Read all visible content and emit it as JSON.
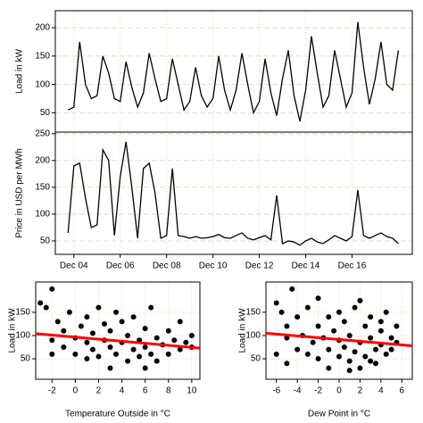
{
  "chart_data": [
    {
      "type": "line",
      "ylabel": "Load in kW",
      "color": "#000000",
      "grid": true,
      "xlim": [
        3.2,
        18.6
      ],
      "ylim": [
        16,
        230
      ],
      "yticks": [
        50,
        100,
        150,
        200
      ],
      "x": [
        3.75,
        4,
        4.25,
        4.5,
        4.75,
        5,
        5.25,
        5.5,
        5.75,
        6,
        6.25,
        6.5,
        6.75,
        7,
        7.25,
        7.5,
        7.75,
        8,
        8.25,
        8.5,
        8.75,
        9,
        9.25,
        9.5,
        9.75,
        10,
        10.25,
        10.5,
        10.75,
        11,
        11.25,
        11.5,
        11.75,
        12,
        12.25,
        12.5,
        12.75,
        13,
        13.25,
        13.5,
        13.75,
        14,
        14.25,
        14.5,
        14.75,
        15,
        15.25,
        15.5,
        15.75,
        16,
        16.25,
        16.5,
        16.75,
        17,
        17.25,
        17.5,
        17.75,
        18
      ],
      "values": [
        55,
        60,
        175,
        100,
        75,
        80,
        150,
        120,
        75,
        70,
        140,
        95,
        60,
        85,
        155,
        110,
        70,
        75,
        145,
        100,
        55,
        70,
        130,
        80,
        60,
        75,
        150,
        90,
        55,
        90,
        155,
        100,
        50,
        70,
        145,
        85,
        45,
        110,
        160,
        80,
        35,
        90,
        185,
        120,
        60,
        80,
        160,
        110,
        60,
        85,
        210,
        130,
        65,
        110,
        175,
        100,
        90,
        160
      ]
    },
    {
      "type": "line",
      "ylabel": "Price in USD per MWh",
      "color": "#000000",
      "grid": true,
      "xlim": [
        3.2,
        18.6
      ],
      "ylim": [
        25,
        253
      ],
      "yticks": [
        50,
        100,
        150,
        200,
        250
      ],
      "xticks": [
        {
          "value": 4,
          "label": "Dec 04"
        },
        {
          "value": 6,
          "label": "Dec 06"
        },
        {
          "value": 8,
          "label": "Dec 08"
        },
        {
          "value": 10,
          "label": "Dec 10"
        },
        {
          "value": 12,
          "label": "Dec 12"
        },
        {
          "value": 14,
          "label": "Dec 14"
        },
        {
          "value": 16,
          "label": "Dec 16"
        }
      ],
      "x": [
        3.75,
        4,
        4.25,
        4.5,
        4.75,
        5,
        5.25,
        5.5,
        5.75,
        6,
        6.25,
        6.5,
        6.75,
        7,
        7.25,
        7.5,
        7.75,
        8,
        8.25,
        8.5,
        8.75,
        9,
        9.25,
        9.5,
        9.75,
        10,
        10.25,
        10.5,
        10.75,
        11,
        11.25,
        11.5,
        11.75,
        12,
        12.25,
        12.5,
        12.75,
        13,
        13.25,
        13.5,
        13.75,
        14,
        14.25,
        14.5,
        14.75,
        15,
        15.25,
        15.5,
        15.75,
        16,
        16.25,
        16.5,
        16.75,
        17,
        17.25,
        17.5,
        17.75,
        18
      ],
      "values": [
        65,
        190,
        195,
        130,
        75,
        80,
        220,
        200,
        60,
        170,
        235,
        150,
        55,
        185,
        195,
        140,
        55,
        60,
        185,
        60,
        58,
        55,
        58,
        55,
        56,
        58,
        62,
        56,
        55,
        60,
        65,
        55,
        52,
        56,
        60,
        52,
        135,
        45,
        50,
        48,
        42,
        50,
        55,
        48,
        45,
        52,
        60,
        55,
        50,
        58,
        145,
        60,
        55,
        60,
        65,
        58,
        55,
        45
      ]
    },
    {
      "type": "scatter",
      "xlabel": "Temperature Outside in °C",
      "ylabel": "Load in kW",
      "color": "#000000",
      "grid": true,
      "xlim": [
        -3.4,
        10.7
      ],
      "ylim": [
        6,
        215
      ],
      "xticks": [
        -2,
        0,
        2,
        4,
        6,
        8,
        10
      ],
      "yticks": [
        50,
        100,
        150
      ],
      "x": [
        -3,
        -2.5,
        -2,
        -2,
        -1.5,
        -1,
        -1,
        -0.5,
        0,
        0,
        0.5,
        1,
        1,
        1.5,
        1.5,
        2,
        2,
        2.5,
        2.5,
        3,
        3,
        3.5,
        3.5,
        4,
        4,
        4.5,
        4.5,
        5,
        5,
        5.5,
        5.5,
        6,
        6,
        6.5,
        6.5,
        7,
        7,
        7.5,
        8,
        8,
        8.5,
        9,
        9,
        9.5,
        10,
        10,
        -2,
        1,
        3,
        6
      ],
      "values": [
        170,
        160,
        200,
        90,
        130,
        75,
        110,
        150,
        60,
        95,
        120,
        85,
        140,
        70,
        105,
        160,
        55,
        90,
        125,
        75,
        110,
        150,
        60,
        85,
        130,
        45,
        100,
        70,
        140,
        90,
        55,
        115,
        75,
        160,
        60,
        95,
        45,
        80,
        110,
        60,
        90,
        70,
        130,
        85,
        75,
        100,
        60,
        50,
        30,
        30
      ],
      "trend": {
        "color": "#ff0000",
        "x": [
          -3.4,
          10.7
        ],
        "y": [
          104,
          73
        ]
      }
    },
    {
      "type": "scatter",
      "xlabel": "Dew Point in °C",
      "ylabel": "Load in kW",
      "color": "#000000",
      "grid": true,
      "xlim": [
        -7,
        7
      ],
      "ylim": [
        6,
        215
      ],
      "xticks": [
        -6,
        -4,
        -2,
        0,
        2,
        4,
        6
      ],
      "yticks": [
        50,
        100,
        150
      ],
      "x": [
        -6,
        -5.5,
        -5,
        -5,
        -4.5,
        -4,
        -4,
        -3.5,
        -3,
        -3,
        -2.5,
        -2,
        -2,
        -1.5,
        -1,
        -1,
        -0.5,
        0,
        0,
        0.5,
        0.5,
        1,
        1,
        1.5,
        1.5,
        2,
        2,
        2.5,
        2.5,
        3,
        3,
        3.5,
        3.5,
        4,
        4,
        4.5,
        4.5,
        5,
        5,
        5.5,
        5.5,
        -6,
        -5,
        -2,
        0,
        1,
        3,
        -1,
        2,
        4
      ],
      "values": [
        170,
        150,
        95,
        120,
        200,
        70,
        140,
        100,
        60,
        160,
        85,
        120,
        50,
        95,
        140,
        70,
        110,
        55,
        90,
        130,
        75,
        45,
        100,
        160,
        65,
        85,
        30,
        120,
        55,
        95,
        140,
        70,
        40,
        110,
        80,
        150,
        60,
        95,
        70,
        120,
        85,
        60,
        40,
        180,
        150,
        25,
        45,
        30,
        175,
        130
      ],
      "trend": {
        "color": "#ff0000",
        "x": [
          -7,
          7
        ],
        "y": [
          105,
          78
        ]
      }
    }
  ]
}
